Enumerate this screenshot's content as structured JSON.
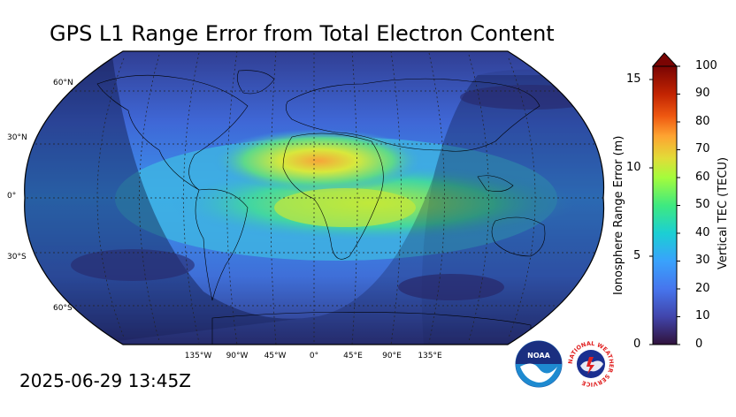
{
  "title": "GPS L1 Range Error from Total Electron Content",
  "timestamp": "2025-06-29 13:45Z",
  "map": {
    "projection": "robinson",
    "latitude_labels": [
      "60°N",
      "30°N",
      "0°",
      "30°S",
      "60°S"
    ],
    "longitude_labels": [
      "135°W",
      "90°W",
      "45°W",
      "0°",
      "45°E",
      "90°E",
      "135°E"
    ],
    "features": [
      "coastlines",
      "country-borders",
      "graticule-dashed",
      "night-shading"
    ]
  },
  "colorbar": {
    "left_axis_label": "Ionosphere Range Error (m)",
    "right_axis_label": "Vertical TEC (TECU)",
    "left_ticks": [
      "15",
      "10",
      "5",
      "0"
    ],
    "right_ticks": [
      "100",
      "90",
      "80",
      "70",
      "60",
      "50",
      "40",
      "30",
      "20",
      "10",
      "0"
    ],
    "range_tecu": [
      0,
      100
    ],
    "range_m": [
      0,
      16.2
    ],
    "extend": "max"
  },
  "logos": {
    "noaa_text": "NOAA",
    "nws_text": "NATIONAL WEATHER SERVICE"
  }
}
